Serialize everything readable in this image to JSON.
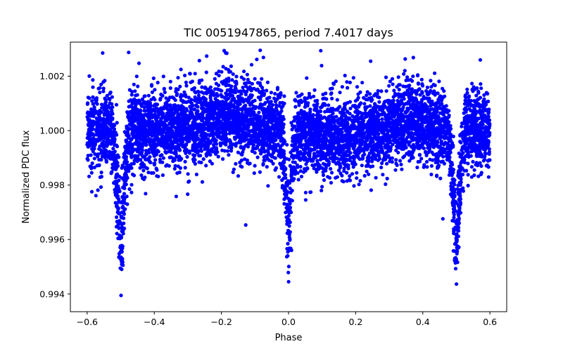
{
  "chart_data": {
    "type": "scatter",
    "title": "TIC 0051947865, period 7.4017 days",
    "xlabel": "Phase",
    "ylabel": "Normalized PDC flux",
    "xlim": [
      -0.65,
      0.65
    ],
    "ylim": [
      0.99335,
      1.00325
    ],
    "x_ticks": [
      -0.6,
      -0.4,
      -0.2,
      0.0,
      0.2,
      0.4,
      0.6
    ],
    "x_tick_labels": [
      "−0.6",
      "−0.4",
      "−0.2",
      "0.0",
      "0.2",
      "0.4",
      "0.6"
    ],
    "y_ticks": [
      0.994,
      0.996,
      0.998,
      1.0,
      1.002
    ],
    "y_tick_labels": [
      "0.994",
      "0.996",
      "0.998",
      "1.000",
      "1.002"
    ],
    "marker_color": "#0000ff",
    "grid": false,
    "series": [
      {
        "name": "PDC flux",
        "description": "Phase-folded light curve; baseline ~1.000 with scatter ~±0.001, primary eclipses at phase −0.5 and +0.5 (min ~0.9939), secondary eclipse at phase 0.0 (min ~0.9947), points span phase −0.6 to 0.6",
        "baseline": 1.0,
        "scatter": 0.0007,
        "primary_eclipse_phases": [
          -0.5,
          0.5
        ],
        "primary_eclipse_min": 0.9939,
        "secondary_eclipse_phase": 0.0,
        "secondary_eclipse_min": 0.9947,
        "phase_range": [
          -0.6,
          0.6
        ]
      }
    ]
  }
}
